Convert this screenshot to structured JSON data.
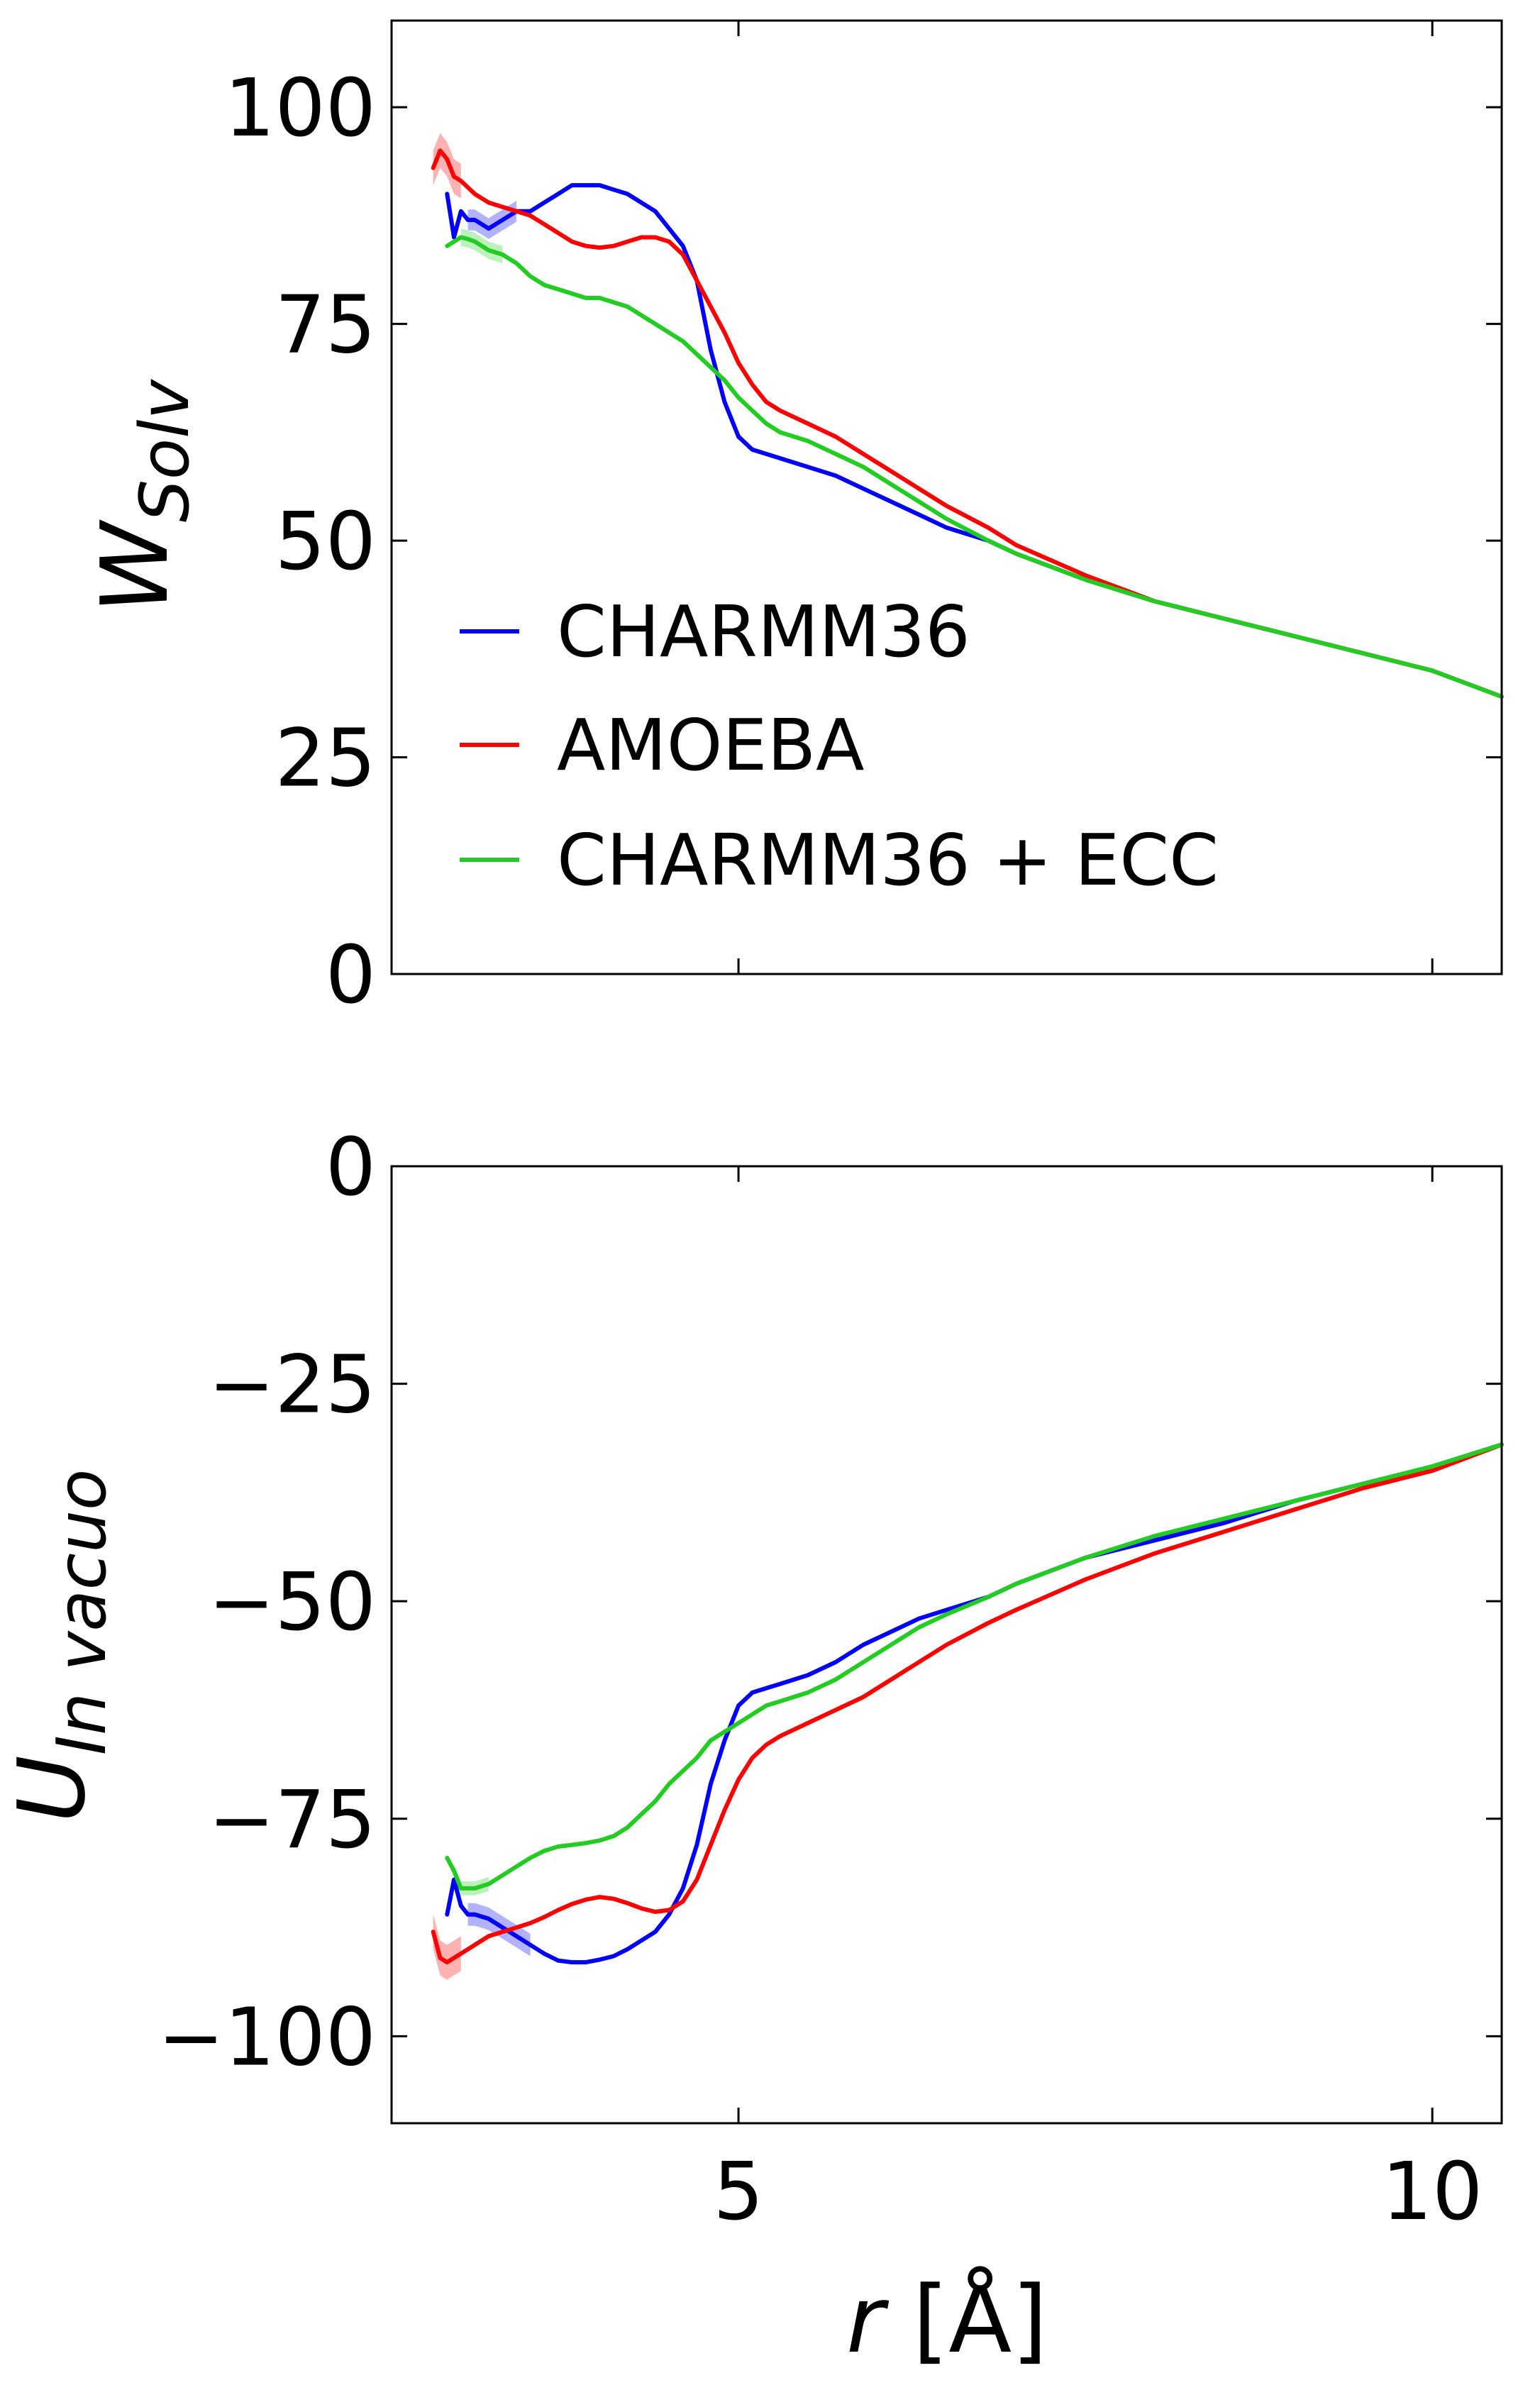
{
  "colors": {
    "blue": "#0000ff",
    "red": "#ff0000",
    "green": "#22cc22"
  },
  "chart_data": [
    {
      "type": "line",
      "ylabel_main": "W",
      "ylabel_sub": "Solv",
      "xlim": [
        2.5,
        10.5
      ],
      "ylim": [
        0,
        110
      ],
      "xticks": [
        5,
        10
      ],
      "yticks": [
        0,
        25,
        50,
        75,
        100
      ],
      "ytick_labels": [
        "0",
        "25",
        "50",
        "75",
        "100"
      ],
      "legend": {
        "placement": "lower-left"
      },
      "series": [
        {
          "name": "CHARMM36",
          "color": "#0000ff",
          "x": [
            2.9,
            2.95,
            3.0,
            3.05,
            3.1,
            3.2,
            3.3,
            3.4,
            3.5,
            3.6,
            3.7,
            3.8,
            3.9,
            4.0,
            4.1,
            4.2,
            4.3,
            4.4,
            4.5,
            4.6,
            4.7,
            4.8,
            4.9,
            5.0,
            5.1,
            5.2,
            5.3,
            5.5,
            5.7,
            5.9,
            6.1,
            6.3,
            6.5,
            6.8,
            7.0,
            7.5,
            8.0,
            8.5,
            9.0,
            9.5,
            10.0,
            10.5
          ],
          "y": [
            90,
            85,
            88,
            87,
            87,
            86,
            87,
            88,
            88,
            89,
            90,
            91,
            91,
            91,
            90.5,
            90,
            89,
            88,
            86,
            84,
            80,
            72,
            66,
            62,
            60.5,
            60,
            59.5,
            58.5,
            57.5,
            56,
            54.5,
            53,
            51.5,
            50,
            48.5,
            45.5,
            43,
            41,
            39,
            37,
            35,
            32
          ]
        },
        {
          "name": "AMOEBA",
          "color": "#ff0000",
          "x": [
            2.8,
            2.85,
            2.9,
            2.95,
            3.0,
            3.1,
            3.2,
            3.3,
            3.4,
            3.5,
            3.6,
            3.7,
            3.8,
            3.9,
            4.0,
            4.1,
            4.2,
            4.3,
            4.4,
            4.5,
            4.6,
            4.7,
            4.8,
            4.9,
            5.0,
            5.1,
            5.2,
            5.3,
            5.5,
            5.7,
            5.9,
            6.1,
            6.3,
            6.5,
            6.8,
            7.0,
            7.5,
            8.0,
            8.5,
            9.0,
            9.5,
            10.0,
            10.5
          ],
          "y": [
            93,
            95,
            94,
            92,
            91.5,
            90,
            89,
            88.5,
            88,
            87.5,
            86.5,
            85.5,
            84.5,
            84,
            83.8,
            84,
            84.5,
            85,
            85,
            84.5,
            83,
            80,
            77,
            74,
            70.5,
            68,
            66,
            65,
            63.5,
            62,
            60,
            58,
            56,
            54,
            51.5,
            49.5,
            46,
            43,
            41,
            39,
            37,
            35,
            32
          ]
        },
        {
          "name": "CHARMM36 + ECC",
          "color": "#22cc22",
          "x": [
            2.9,
            2.95,
            3.0,
            3.05,
            3.1,
            3.2,
            3.3,
            3.4,
            3.5,
            3.6,
            3.7,
            3.8,
            3.9,
            4.0,
            4.1,
            4.2,
            4.3,
            4.4,
            4.5,
            4.6,
            4.7,
            4.8,
            4.9,
            5.0,
            5.1,
            5.2,
            5.3,
            5.5,
            5.7,
            5.9,
            6.1,
            6.3,
            6.5,
            6.8,
            7.0,
            7.5,
            8.0,
            8.5,
            9.0,
            9.5,
            10.0,
            10.5
          ],
          "y": [
            84,
            84.5,
            85,
            84.8,
            84.5,
            83.5,
            83,
            82,
            80.5,
            79.5,
            79,
            78.5,
            78,
            78,
            77.5,
            77,
            76,
            75,
            74,
            73,
            71.5,
            70,
            68.5,
            66.5,
            65,
            63.5,
            62.5,
            61.5,
            60,
            58.5,
            56.5,
            54.5,
            52.5,
            50,
            48.5,
            45.5,
            43,
            41,
            39,
            37,
            35,
            32
          ]
        }
      ],
      "bands": [
        {
          "series": "CHARMM36",
          "x": [
            3.05,
            3.1,
            3.2,
            3.3,
            3.4
          ],
          "half_width": 1.2
        },
        {
          "series": "AMOEBA",
          "x": [
            2.8,
            2.85,
            2.9,
            2.95,
            3.0
          ],
          "half_width": 2.0
        },
        {
          "series": "CHARMM36 + ECC",
          "x": [
            3.0,
            3.05,
            3.1,
            3.2,
            3.3
          ],
          "half_width": 1.0
        }
      ]
    },
    {
      "type": "line",
      "ylabel_main": "U",
      "ylabel_sub": "In vacuo",
      "xlabel_main": "r",
      "xlabel_unit": "[Å]",
      "xlim": [
        2.5,
        10.5
      ],
      "ylim": [
        -110,
        0
      ],
      "xticks": [
        5,
        10
      ],
      "xtick_labels": [
        "5",
        "10"
      ],
      "yticks": [
        0,
        -25,
        -50,
        -75,
        -100
      ],
      "ytick_labels": [
        "0",
        "−25",
        "−50",
        "−75",
        "−100"
      ],
      "series": [
        {
          "name": "CHARMM36",
          "color": "#0000ff",
          "x": [
            2.9,
            2.95,
            3.0,
            3.05,
            3.1,
            3.2,
            3.3,
            3.4,
            3.5,
            3.6,
            3.7,
            3.8,
            3.9,
            4.0,
            4.1,
            4.2,
            4.3,
            4.4,
            4.5,
            4.6,
            4.7,
            4.8,
            4.9,
            5.0,
            5.1,
            5.2,
            5.3,
            5.5,
            5.7,
            5.9,
            6.1,
            6.3,
            6.5,
            6.8,
            7.0,
            7.5,
            8.0,
            8.5,
            9.0,
            9.5,
            10.0,
            10.5
          ],
          "y": [
            -86,
            -82,
            -85,
            -86,
            -86,
            -86.5,
            -87.5,
            -88.5,
            -89.5,
            -90.5,
            -91.3,
            -91.5,
            -91.5,
            -91.2,
            -90.8,
            -90,
            -89,
            -88,
            -86,
            -83,
            -78,
            -71,
            -66,
            -62,
            -60.5,
            -60,
            -59.5,
            -58.5,
            -57,
            -55,
            -53.5,
            -52,
            -51,
            -49.5,
            -48,
            -45,
            -43,
            -41,
            -38.5,
            -36.5,
            -34.5,
            -32
          ]
        },
        {
          "name": "AMOEBA",
          "color": "#ff0000",
          "x": [
            2.8,
            2.85,
            2.9,
            2.95,
            3.0,
            3.1,
            3.2,
            3.3,
            3.4,
            3.5,
            3.6,
            3.7,
            3.8,
            3.9,
            4.0,
            4.1,
            4.2,
            4.3,
            4.4,
            4.5,
            4.6,
            4.7,
            4.8,
            4.9,
            5.0,
            5.1,
            5.2,
            5.3,
            5.5,
            5.7,
            5.9,
            6.1,
            6.3,
            6.5,
            6.8,
            7.0,
            7.5,
            8.0,
            8.5,
            9.0,
            9.5,
            10.0,
            10.5
          ],
          "y": [
            -88,
            -91,
            -91.5,
            -91,
            -90.5,
            -89.5,
            -88.5,
            -88,
            -87.5,
            -87,
            -86.3,
            -85.5,
            -84.8,
            -84.3,
            -84,
            -84.2,
            -84.7,
            -85.3,
            -85.7,
            -85.5,
            -84.5,
            -82,
            -78,
            -74,
            -70.5,
            -68,
            -66.5,
            -65.5,
            -64,
            -62.5,
            -61,
            -59,
            -57,
            -55,
            -52.5,
            -51,
            -47.5,
            -44.5,
            -42,
            -39.5,
            -37,
            -35,
            -32
          ]
        },
        {
          "name": "CHARMM36 + ECC",
          "color": "#22cc22",
          "x": [
            2.9,
            2.95,
            3.0,
            3.05,
            3.1,
            3.2,
            3.3,
            3.4,
            3.5,
            3.6,
            3.7,
            3.8,
            3.9,
            4.0,
            4.1,
            4.2,
            4.3,
            4.4,
            4.5,
            4.6,
            4.7,
            4.8,
            4.9,
            5.0,
            5.1,
            5.2,
            5.3,
            5.5,
            5.7,
            5.9,
            6.1,
            6.3,
            6.5,
            6.8,
            7.0,
            7.5,
            8.0,
            8.5,
            9.0,
            9.5,
            10.0,
            10.5
          ],
          "y": [
            -79.5,
            -81,
            -83,
            -83,
            -83,
            -82.5,
            -81.5,
            -80.5,
            -79.5,
            -78.7,
            -78.2,
            -78,
            -77.8,
            -77.5,
            -77,
            -76,
            -74.5,
            -73,
            -71,
            -69.5,
            -68,
            -66,
            -65,
            -64,
            -63,
            -62,
            -61.5,
            -60.5,
            -59,
            -57,
            -55,
            -53,
            -51.5,
            -49.5,
            -48,
            -45,
            -42.5,
            -40.5,
            -38.5,
            -36.5,
            -34.5,
            -32
          ]
        }
      ],
      "bands": [
        {
          "series": "CHARMM36",
          "x": [
            3.05,
            3.1,
            3.2,
            3.3,
            3.4,
            3.5
          ],
          "half_width": 1.3
        },
        {
          "series": "AMOEBA",
          "x": [
            2.8,
            2.85,
            2.9,
            2.95,
            3.0
          ],
          "half_width": 2.0
        },
        {
          "series": "CHARMM36 + ECC",
          "x": [
            2.95,
            3.0,
            3.05,
            3.1,
            3.2
          ],
          "half_width": 0.8
        }
      ]
    }
  ]
}
